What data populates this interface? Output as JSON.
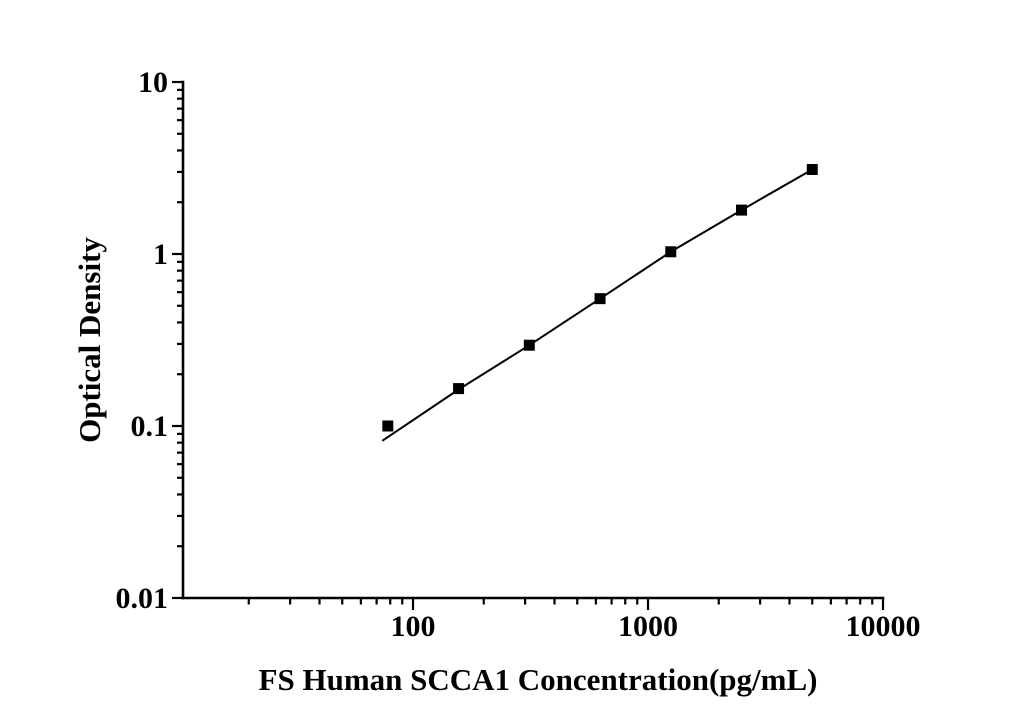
{
  "chart_data": {
    "type": "line",
    "xlabel": "FS Human SCCA1 Concentration(pg/mL)",
    "ylabel": "Optical Density",
    "x_scale": "log10",
    "y_scale": "log10",
    "xlim": [
      10.5,
      10000
    ],
    "ylim": [
      0.01,
      10
    ],
    "x_major_ticks": [
      100,
      1000,
      10000
    ],
    "x_tick_labels": [
      "100",
      "1000",
      "10000"
    ],
    "y_major_ticks": [
      10,
      1,
      0.1,
      0.01
    ],
    "y_tick_labels": [
      "10",
      "1",
      "0.1",
      "0.01"
    ],
    "grid": false,
    "legend": false,
    "marker": "filled-square",
    "marker_size_px": 11,
    "line_color": "#000000",
    "marker_color": "#000000",
    "background_color": "#ffffff",
    "series": [
      {
        "name": "standard-curve",
        "x": [
          78.125,
          156.25,
          312.5,
          625,
          1250,
          2500,
          5000
        ],
        "y": [
          0.1,
          0.165,
          0.295,
          0.55,
          1.03,
          1.8,
          3.1
        ]
      }
    ],
    "fit_line": {
      "x": [
        74,
        156.25,
        312.5,
        625,
        1250,
        2500,
        5000
      ],
      "y": [
        0.082,
        0.163,
        0.295,
        0.55,
        1.03,
        1.8,
        3.1
      ]
    }
  }
}
